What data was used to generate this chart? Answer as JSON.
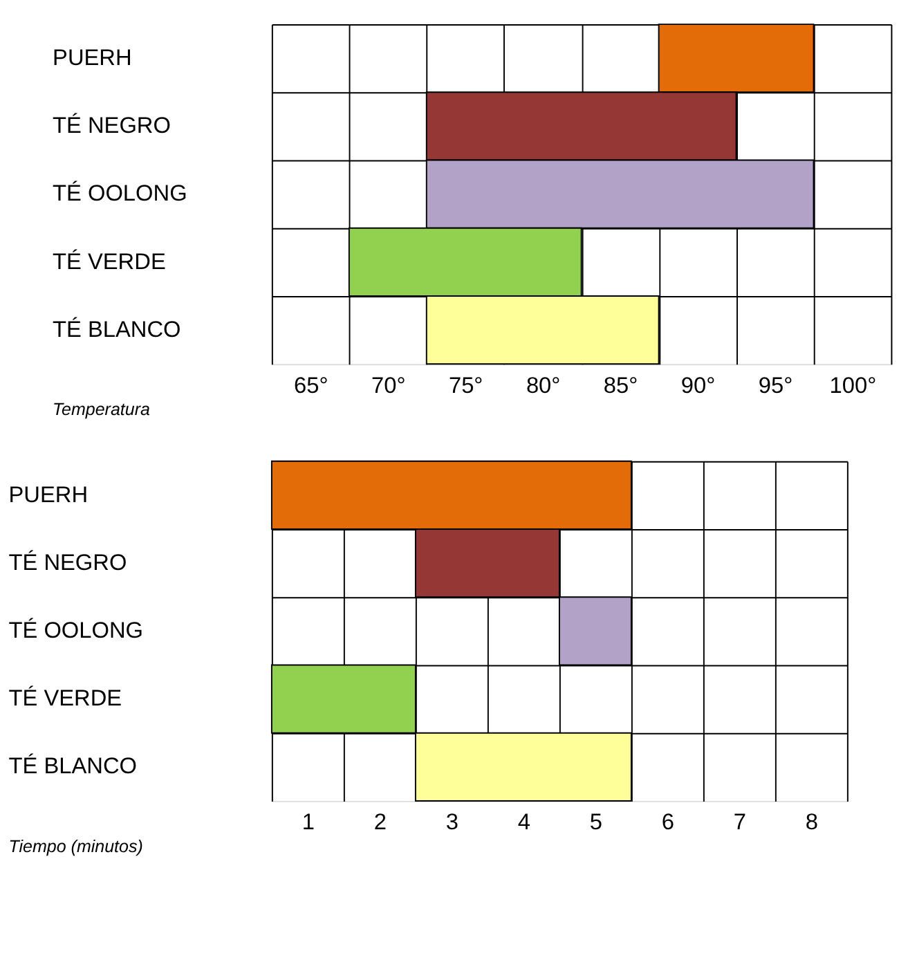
{
  "chart_data": [
    {
      "type": "bar",
      "orientation": "horizontal",
      "xlabel": "Temperatura",
      "categories": [
        "PUERH",
        "TÉ NEGRO",
        "TÉ OOLONG",
        "TÉ VERDE",
        "TÉ BLANCO"
      ],
      "base": [
        87.5,
        72.5,
        72.5,
        67.5,
        72.5
      ],
      "values": [
        10,
        20,
        25,
        15,
        15
      ],
      "colors": [
        "#e36c09",
        "#953735",
        "#b3a2c7",
        "#92d050",
        "#ffff99"
      ],
      "xlim": [
        62.5,
        102.5
      ],
      "grid": true,
      "xticks": [
        {
          "value": 62.5,
          "label": null
        },
        {
          "value": 65,
          "label": "65°"
        },
        {
          "value": 67.5,
          "label": null
        },
        {
          "value": 70,
          "label": "70°"
        },
        {
          "value": 72.5,
          "label": null
        },
        {
          "value": 75,
          "label": "75°"
        },
        {
          "value": 77.5,
          "label": null
        },
        {
          "value": 80,
          "label": "80°"
        },
        {
          "value": 82.5,
          "label": null
        },
        {
          "value": 85,
          "label": "85°"
        },
        {
          "value": 87.5,
          "label": null
        },
        {
          "value": 90,
          "label": "90°"
        },
        {
          "value": 92.5,
          "label": null
        },
        {
          "value": 95,
          "label": "95°"
        },
        {
          "value": 97.5,
          "label": null
        },
        {
          "value": 100,
          "label": "100°"
        },
        {
          "value": 102.5,
          "label": null
        }
      ]
    },
    {
      "type": "bar",
      "orientation": "horizontal",
      "xlabel": "Tiempo (minutos)",
      "categories": [
        "PUERH",
        "TÉ NEGRO",
        "TÉ OOLONG",
        "TÉ VERDE",
        "TÉ BLANCO"
      ],
      "base": [
        0.5,
        2.5,
        4.5,
        0.5,
        2.5
      ],
      "values": [
        5,
        2,
        1,
        2,
        3
      ],
      "colors": [
        "#e36c09",
        "#953735",
        "#b3a2c7",
        "#92d050",
        "#ffff99"
      ],
      "xlim": [
        0.5,
        8.5
      ],
      "grid": true,
      "xticks": [
        {
          "value": 0.5,
          "label": null
        },
        1,
        {
          "value": 1.5,
          "label": null
        },
        2,
        {
          "value": 2.5,
          "label": null
        },
        3,
        {
          "value": 3.5,
          "label": null
        },
        4,
        {
          "value": 4.5,
          "label": null
        },
        5,
        {
          "value": 5.5,
          "label": null
        },
        6,
        {
          "value": 6.5,
          "label": null
        },
        7,
        {
          "value": 7.5,
          "label": null
        },
        8,
        {
          "value": 8.5,
          "label": null
        }
      ]
    }
  ]
}
